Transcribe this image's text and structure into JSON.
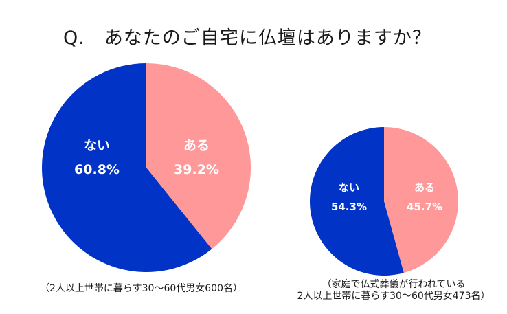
{
  "title": "Q.　あなたのご自宅に仏壇はありますか？",
  "colors": {
    "nai": "#0033c6",
    "aru": "#ff9999"
  },
  "chart_data": [
    {
      "type": "pie",
      "title": "Q.　あなたのご自宅に仏壇はありますか？",
      "note": "（2人以上世帯に暮らす30～60代男女600名）",
      "slices": [
        {
          "label": "ある",
          "value": 39.2,
          "value_label": "39.2%",
          "color": "#ff9999"
        },
        {
          "label": "ない",
          "value": 60.8,
          "value_label": "60.8%",
          "color": "#0033c6"
        }
      ]
    },
    {
      "type": "pie",
      "note_line1": "（家庭で仏式葬儀が行われている",
      "note_line2": "2人以上世帯に暮らす30～60代男女473名）",
      "slices": [
        {
          "label": "ある",
          "value": 45.7,
          "value_label": "45.7%",
          "color": "#ff9999"
        },
        {
          "label": "ない",
          "value": 54.3,
          "value_label": "54.3%",
          "color": "#0033c6"
        }
      ]
    }
  ]
}
